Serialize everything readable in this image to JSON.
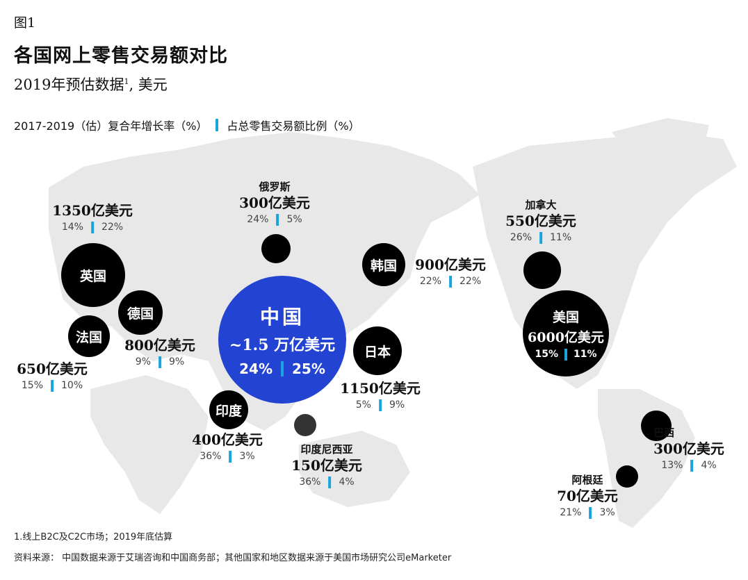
{
  "header": {
    "figure_label": "图1",
    "title": "各国网上零售交易额对比",
    "subtitle": "2019年预估数据",
    "subtitle_sup": "1",
    "subtitle_unit": ", 美元"
  },
  "legend": {
    "growth_label": "2017-2019（估）复合年增长率（%）",
    "share_label": "占总零售交易额比例（%）"
  },
  "colors": {
    "china_bubble": "#2343d2",
    "bubble": "#000000",
    "accent_bar": "#1aa3dd",
    "land": "#e8e8e8"
  },
  "countries": {
    "uk": {
      "name": "英国",
      "amount": "1350亿美元",
      "growth": "14%",
      "share": "22%"
    },
    "germany": {
      "name": "德国",
      "amount": "800亿美元",
      "growth": "9%",
      "share": "9%"
    },
    "france": {
      "name": "法国",
      "amount": "650亿美元",
      "growth": "15%",
      "share": "10%"
    },
    "russia": {
      "name": "俄罗斯",
      "amount": "300亿美元",
      "growth": "24%",
      "share": "5%"
    },
    "korea": {
      "name": "韩国",
      "amount": "900亿美元",
      "growth": "22%",
      "share": "22%"
    },
    "china": {
      "name": "中国",
      "amount": "~1.5 万亿美元",
      "growth": "24%",
      "share": "25%"
    },
    "japan": {
      "name": "日本",
      "amount": "1150亿美元",
      "growth": "5%",
      "share": "9%"
    },
    "india": {
      "name": "印度",
      "amount": "400亿美元",
      "growth": "36%",
      "share": "3%"
    },
    "indonesia": {
      "name": "印度尼西亚",
      "amount": "150亿美元",
      "growth": "36%",
      "share": "4%"
    },
    "canada": {
      "name": "加拿大",
      "amount": "550亿美元",
      "growth": "26%",
      "share": "11%"
    },
    "usa": {
      "name": "美国",
      "amount": "6000亿美元",
      "growth": "15%",
      "share": "11%"
    },
    "brazil": {
      "name": "巴西",
      "amount": "300亿美元",
      "growth": "13%",
      "share": "4%"
    },
    "argentina": {
      "name": "阿根廷",
      "amount": "70亿美元",
      "growth": "21%",
      "share": "3%"
    }
  },
  "footer": {
    "footnote": "1.线上B2C及C2C市场；2019年底估算",
    "source": "资料来源：  中国数据来源于艾瑞咨询和中国商务部；其他国家和地区数据来源于美国市场研究公司eMarketer"
  }
}
